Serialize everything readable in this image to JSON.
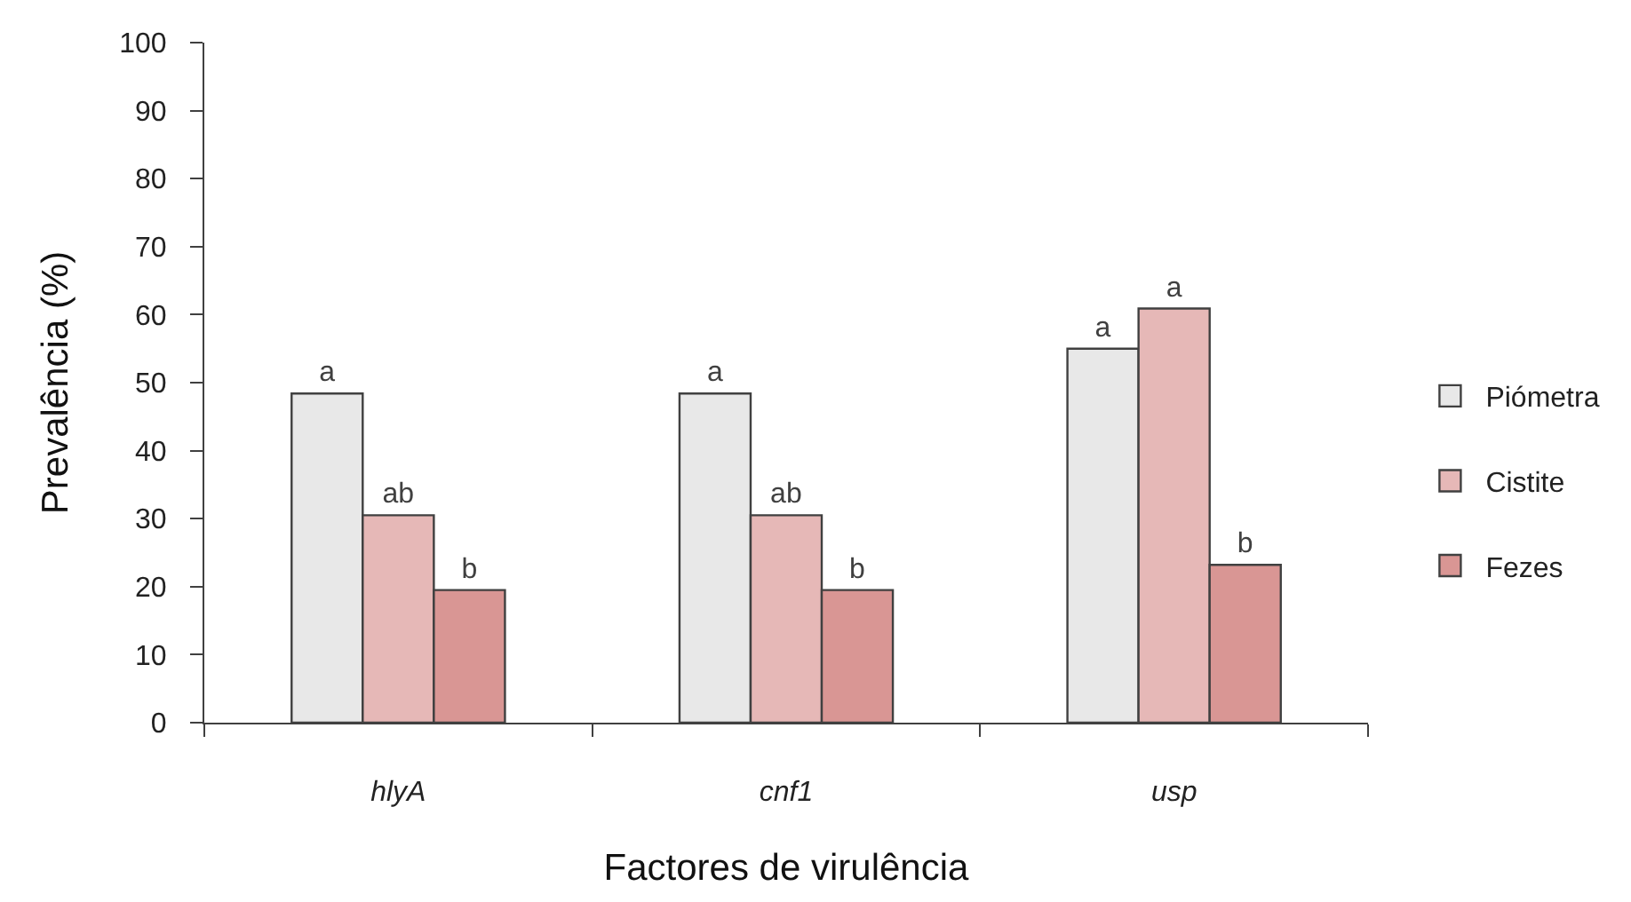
{
  "chart_data": {
    "type": "bar",
    "xlabel": "Factores de virulência",
    "ylabel": "Prevalência (%)",
    "categories": [
      "hlyA",
      "cnf1",
      "usp"
    ],
    "series": [
      {
        "name": "Piómetra",
        "color": "#e8e8e8",
        "values": [
          48.4,
          48.4,
          55.0
        ],
        "value_labels": [
          "a",
          "a",
          "a"
        ]
      },
      {
        "name": "Cistite",
        "color": "#e6b8b7",
        "values": [
          30.5,
          30.5,
          60.9
        ],
        "value_labels": [
          "ab",
          "ab",
          "a"
        ]
      },
      {
        "name": "Fezes",
        "color": "#d99694",
        "values": [
          19.5,
          19.5,
          23.2
        ],
        "value_labels": [
          "b",
          "b",
          "b"
        ]
      }
    ],
    "ylim": [
      0,
      100
    ],
    "yticks": [
      0,
      10,
      20,
      30,
      40,
      50,
      60,
      70,
      80,
      90,
      100
    ],
    "grid": false,
    "legend": "right"
  }
}
